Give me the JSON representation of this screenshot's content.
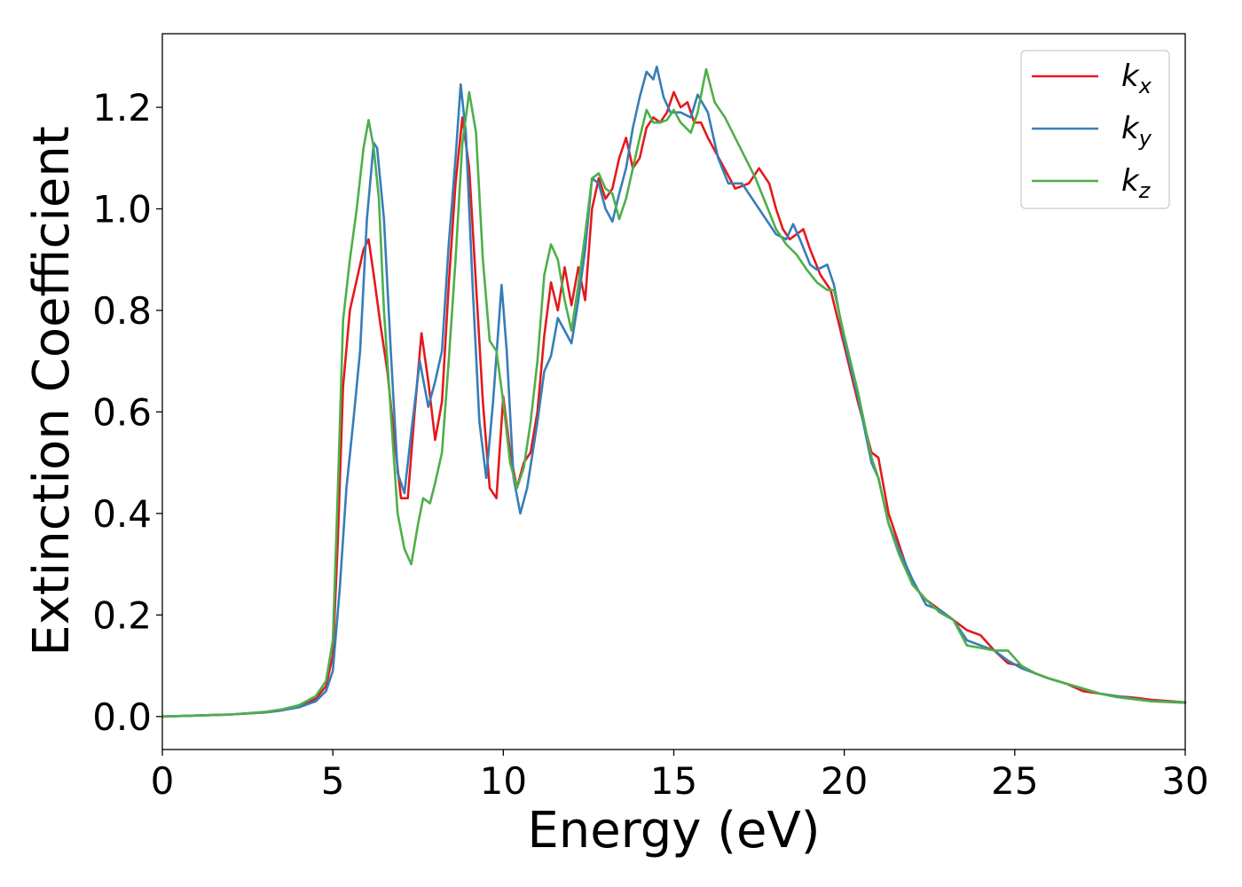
{
  "chart_data": {
    "type": "line",
    "title": "",
    "xlabel": "Energy (eV)",
    "ylabel": "Extinction Coefficient",
    "xlim": [
      0,
      30
    ],
    "ylim": [
      -0.065,
      1.345
    ],
    "xticks": [
      0,
      5,
      10,
      15,
      20,
      25,
      30
    ],
    "xtick_labels": [
      "0",
      "5",
      "10",
      "15",
      "20",
      "25",
      "30"
    ],
    "yticks": [
      0.0,
      0.2,
      0.4,
      0.6,
      0.8,
      1.0,
      1.2
    ],
    "ytick_labels": [
      "0.0",
      "0.2",
      "0.4",
      "0.6",
      "0.8",
      "1.0",
      "1.2"
    ],
    "grid": false,
    "legend_position": "top-right",
    "series": [
      {
        "name": "k",
        "subscript": "x",
        "color": "#e41a1c",
        "points": [
          [
            0,
            0.0
          ],
          [
            1,
            0.002
          ],
          [
            2,
            0.004
          ],
          [
            3,
            0.008
          ],
          [
            3.5,
            0.012
          ],
          [
            4,
            0.02
          ],
          [
            4.5,
            0.035
          ],
          [
            4.8,
            0.06
          ],
          [
            5.0,
            0.12
          ],
          [
            5.15,
            0.35
          ],
          [
            5.3,
            0.65
          ],
          [
            5.5,
            0.8
          ],
          [
            5.7,
            0.86
          ],
          [
            5.9,
            0.92
          ],
          [
            6.05,
            0.94
          ],
          [
            6.2,
            0.87
          ],
          [
            6.4,
            0.77
          ],
          [
            6.6,
            0.68
          ],
          [
            6.8,
            0.55
          ],
          [
            7.0,
            0.43
          ],
          [
            7.2,
            0.43
          ],
          [
            7.4,
            0.6
          ],
          [
            7.6,
            0.755
          ],
          [
            7.8,
            0.66
          ],
          [
            8.0,
            0.545
          ],
          [
            8.2,
            0.62
          ],
          [
            8.4,
            0.85
          ],
          [
            8.6,
            1.05
          ],
          [
            8.8,
            1.18
          ],
          [
            9.0,
            1.08
          ],
          [
            9.2,
            0.85
          ],
          [
            9.4,
            0.62
          ],
          [
            9.6,
            0.45
          ],
          [
            9.8,
            0.43
          ],
          [
            10.0,
            0.63
          ],
          [
            10.2,
            0.52
          ],
          [
            10.4,
            0.45
          ],
          [
            10.6,
            0.5
          ],
          [
            10.8,
            0.52
          ],
          [
            11.0,
            0.6
          ],
          [
            11.2,
            0.75
          ],
          [
            11.4,
            0.855
          ],
          [
            11.6,
            0.8
          ],
          [
            11.8,
            0.885
          ],
          [
            12.0,
            0.81
          ],
          [
            12.2,
            0.885
          ],
          [
            12.4,
            0.82
          ],
          [
            12.6,
            1.0
          ],
          [
            12.8,
            1.06
          ],
          [
            13.0,
            1.02
          ],
          [
            13.2,
            1.04
          ],
          [
            13.4,
            1.1
          ],
          [
            13.6,
            1.14
          ],
          [
            13.8,
            1.08
          ],
          [
            14.0,
            1.1
          ],
          [
            14.2,
            1.16
          ],
          [
            14.4,
            1.18
          ],
          [
            14.6,
            1.17
          ],
          [
            14.8,
            1.19
          ],
          [
            15.0,
            1.23
          ],
          [
            15.2,
            1.2
          ],
          [
            15.4,
            1.21
          ],
          [
            15.6,
            1.17
          ],
          [
            15.8,
            1.17
          ],
          [
            16.0,
            1.14
          ],
          [
            16.4,
            1.09
          ],
          [
            16.8,
            1.04
          ],
          [
            17.2,
            1.05
          ],
          [
            17.5,
            1.08
          ],
          [
            17.8,
            1.05
          ],
          [
            18.0,
            1.0
          ],
          [
            18.2,
            0.96
          ],
          [
            18.4,
            0.94
          ],
          [
            18.6,
            0.95
          ],
          [
            18.8,
            0.96
          ],
          [
            19.0,
            0.92
          ],
          [
            19.3,
            0.87
          ],
          [
            19.6,
            0.84
          ],
          [
            20.0,
            0.73
          ],
          [
            20.4,
            0.62
          ],
          [
            20.8,
            0.52
          ],
          [
            21.0,
            0.51
          ],
          [
            21.3,
            0.4
          ],
          [
            21.6,
            0.34
          ],
          [
            22.0,
            0.26
          ],
          [
            22.4,
            0.23
          ],
          [
            22.8,
            0.21
          ],
          [
            23.2,
            0.19
          ],
          [
            23.6,
            0.17
          ],
          [
            24.0,
            0.16
          ],
          [
            24.4,
            0.13
          ],
          [
            24.8,
            0.105
          ],
          [
            25.2,
            0.1
          ],
          [
            25.6,
            0.085
          ],
          [
            26.0,
            0.075
          ],
          [
            26.5,
            0.065
          ],
          [
            27.0,
            0.05
          ],
          [
            27.5,
            0.045
          ],
          [
            28.0,
            0.04
          ],
          [
            28.5,
            0.037
          ],
          [
            29.0,
            0.033
          ],
          [
            30.0,
            0.028
          ]
        ]
      },
      {
        "name": "k",
        "subscript": "y",
        "color": "#377eb8",
        "points": [
          [
            0,
            0.0
          ],
          [
            1,
            0.002
          ],
          [
            2,
            0.004
          ],
          [
            3,
            0.008
          ],
          [
            3.5,
            0.012
          ],
          [
            4,
            0.018
          ],
          [
            4.5,
            0.03
          ],
          [
            4.8,
            0.05
          ],
          [
            5.0,
            0.09
          ],
          [
            5.2,
            0.25
          ],
          [
            5.4,
            0.45
          ],
          [
            5.6,
            0.58
          ],
          [
            5.8,
            0.72
          ],
          [
            6.0,
            0.98
          ],
          [
            6.2,
            1.13
          ],
          [
            6.3,
            1.12
          ],
          [
            6.5,
            0.98
          ],
          [
            6.7,
            0.72
          ],
          [
            6.9,
            0.48
          ],
          [
            7.1,
            0.44
          ],
          [
            7.3,
            0.56
          ],
          [
            7.55,
            0.7
          ],
          [
            7.8,
            0.61
          ],
          [
            8.0,
            0.66
          ],
          [
            8.2,
            0.72
          ],
          [
            8.4,
            0.93
          ],
          [
            8.6,
            1.1
          ],
          [
            8.75,
            1.245
          ],
          [
            8.9,
            1.15
          ],
          [
            9.1,
            0.85
          ],
          [
            9.3,
            0.58
          ],
          [
            9.5,
            0.47
          ],
          [
            9.7,
            0.62
          ],
          [
            9.95,
            0.85
          ],
          [
            10.1,
            0.72
          ],
          [
            10.3,
            0.47
          ],
          [
            10.5,
            0.4
          ],
          [
            10.7,
            0.45
          ],
          [
            11.0,
            0.58
          ],
          [
            11.2,
            0.68
          ],
          [
            11.4,
            0.71
          ],
          [
            11.6,
            0.785
          ],
          [
            11.8,
            0.76
          ],
          [
            12.0,
            0.735
          ],
          [
            12.2,
            0.82
          ],
          [
            12.4,
            0.92
          ],
          [
            12.6,
            1.06
          ],
          [
            12.8,
            1.05
          ],
          [
            13.0,
            1.0
          ],
          [
            13.2,
            0.975
          ],
          [
            13.4,
            1.03
          ],
          [
            13.6,
            1.08
          ],
          [
            13.8,
            1.16
          ],
          [
            14.0,
            1.22
          ],
          [
            14.2,
            1.27
          ],
          [
            14.4,
            1.255
          ],
          [
            14.5,
            1.28
          ],
          [
            14.7,
            1.22
          ],
          [
            14.9,
            1.19
          ],
          [
            15.2,
            1.19
          ],
          [
            15.5,
            1.18
          ],
          [
            15.7,
            1.225
          ],
          [
            16.0,
            1.19
          ],
          [
            16.3,
            1.1
          ],
          [
            16.6,
            1.05
          ],
          [
            17.0,
            1.05
          ],
          [
            17.3,
            1.02
          ],
          [
            17.6,
            0.99
          ],
          [
            17.8,
            0.97
          ],
          [
            18.0,
            0.95
          ],
          [
            18.3,
            0.94
          ],
          [
            18.5,
            0.97
          ],
          [
            18.7,
            0.94
          ],
          [
            19.0,
            0.89
          ],
          [
            19.2,
            0.88
          ],
          [
            19.5,
            0.89
          ],
          [
            19.7,
            0.85
          ],
          [
            20.0,
            0.74
          ],
          [
            20.4,
            0.63
          ],
          [
            20.8,
            0.5
          ],
          [
            21.0,
            0.47
          ],
          [
            21.3,
            0.38
          ],
          [
            21.6,
            0.33
          ],
          [
            22.0,
            0.27
          ],
          [
            22.4,
            0.22
          ],
          [
            22.8,
            0.21
          ],
          [
            23.2,
            0.19
          ],
          [
            23.6,
            0.15
          ],
          [
            24.0,
            0.14
          ],
          [
            24.4,
            0.13
          ],
          [
            24.8,
            0.11
          ],
          [
            25.2,
            0.095
          ],
          [
            25.6,
            0.085
          ],
          [
            26.0,
            0.075
          ],
          [
            26.5,
            0.065
          ],
          [
            27.0,
            0.055
          ],
          [
            27.5,
            0.045
          ],
          [
            28.0,
            0.04
          ],
          [
            28.5,
            0.035
          ],
          [
            29.0,
            0.03
          ],
          [
            30.0,
            0.027
          ]
        ]
      },
      {
        "name": "k",
        "subscript": "z",
        "color": "#4daf4a",
        "points": [
          [
            0,
            0.0
          ],
          [
            1,
            0.002
          ],
          [
            2,
            0.004
          ],
          [
            3,
            0.009
          ],
          [
            3.5,
            0.014
          ],
          [
            4,
            0.022
          ],
          [
            4.5,
            0.04
          ],
          [
            4.8,
            0.07
          ],
          [
            5.0,
            0.15
          ],
          [
            5.15,
            0.45
          ],
          [
            5.3,
            0.78
          ],
          [
            5.5,
            0.9
          ],
          [
            5.7,
            1.0
          ],
          [
            5.9,
            1.12
          ],
          [
            6.05,
            1.175
          ],
          [
            6.2,
            1.12
          ],
          [
            6.35,
            1.02
          ],
          [
            6.5,
            0.8
          ],
          [
            6.7,
            0.6
          ],
          [
            6.9,
            0.4
          ],
          [
            7.1,
            0.33
          ],
          [
            7.3,
            0.3
          ],
          [
            7.5,
            0.38
          ],
          [
            7.65,
            0.43
          ],
          [
            7.85,
            0.42
          ],
          [
            8.0,
            0.46
          ],
          [
            8.2,
            0.52
          ],
          [
            8.4,
            0.7
          ],
          [
            8.6,
            0.9
          ],
          [
            8.8,
            1.13
          ],
          [
            9.0,
            1.23
          ],
          [
            9.2,
            1.15
          ],
          [
            9.4,
            0.9
          ],
          [
            9.6,
            0.74
          ],
          [
            9.8,
            0.72
          ],
          [
            10.0,
            0.62
          ],
          [
            10.2,
            0.5
          ],
          [
            10.4,
            0.45
          ],
          [
            10.6,
            0.49
          ],
          [
            10.8,
            0.58
          ],
          [
            11.0,
            0.7
          ],
          [
            11.2,
            0.87
          ],
          [
            11.4,
            0.93
          ],
          [
            11.6,
            0.9
          ],
          [
            11.8,
            0.82
          ],
          [
            12.0,
            0.76
          ],
          [
            12.2,
            0.85
          ],
          [
            12.4,
            0.95
          ],
          [
            12.6,
            1.06
          ],
          [
            12.8,
            1.07
          ],
          [
            13.0,
            1.04
          ],
          [
            13.2,
            1.03
          ],
          [
            13.4,
            0.98
          ],
          [
            13.6,
            1.02
          ],
          [
            13.8,
            1.08
          ],
          [
            14.0,
            1.14
          ],
          [
            14.2,
            1.195
          ],
          [
            14.4,
            1.17
          ],
          [
            14.6,
            1.17
          ],
          [
            14.8,
            1.175
          ],
          [
            15.0,
            1.195
          ],
          [
            15.2,
            1.17
          ],
          [
            15.5,
            1.15
          ],
          [
            15.7,
            1.19
          ],
          [
            15.95,
            1.275
          ],
          [
            16.2,
            1.21
          ],
          [
            16.5,
            1.18
          ],
          [
            16.8,
            1.14
          ],
          [
            17.1,
            1.1
          ],
          [
            17.4,
            1.06
          ],
          [
            17.7,
            1.01
          ],
          [
            18.0,
            0.96
          ],
          [
            18.3,
            0.93
          ],
          [
            18.6,
            0.91
          ],
          [
            18.9,
            0.88
          ],
          [
            19.2,
            0.855
          ],
          [
            19.5,
            0.84
          ],
          [
            19.7,
            0.84
          ],
          [
            20.0,
            0.75
          ],
          [
            20.4,
            0.64
          ],
          [
            20.8,
            0.51
          ],
          [
            21.0,
            0.47
          ],
          [
            21.3,
            0.38
          ],
          [
            21.6,
            0.32
          ],
          [
            22.0,
            0.26
          ],
          [
            22.4,
            0.23
          ],
          [
            22.8,
            0.205
          ],
          [
            23.2,
            0.19
          ],
          [
            23.6,
            0.14
          ],
          [
            24.0,
            0.135
          ],
          [
            24.4,
            0.13
          ],
          [
            24.8,
            0.13
          ],
          [
            25.2,
            0.1
          ],
          [
            25.6,
            0.085
          ],
          [
            26.0,
            0.075
          ],
          [
            26.5,
            0.065
          ],
          [
            27.0,
            0.055
          ],
          [
            27.5,
            0.045
          ],
          [
            28.0,
            0.038
          ],
          [
            28.5,
            0.034
          ],
          [
            29.0,
            0.03
          ],
          [
            30.0,
            0.028
          ]
        ]
      }
    ]
  }
}
